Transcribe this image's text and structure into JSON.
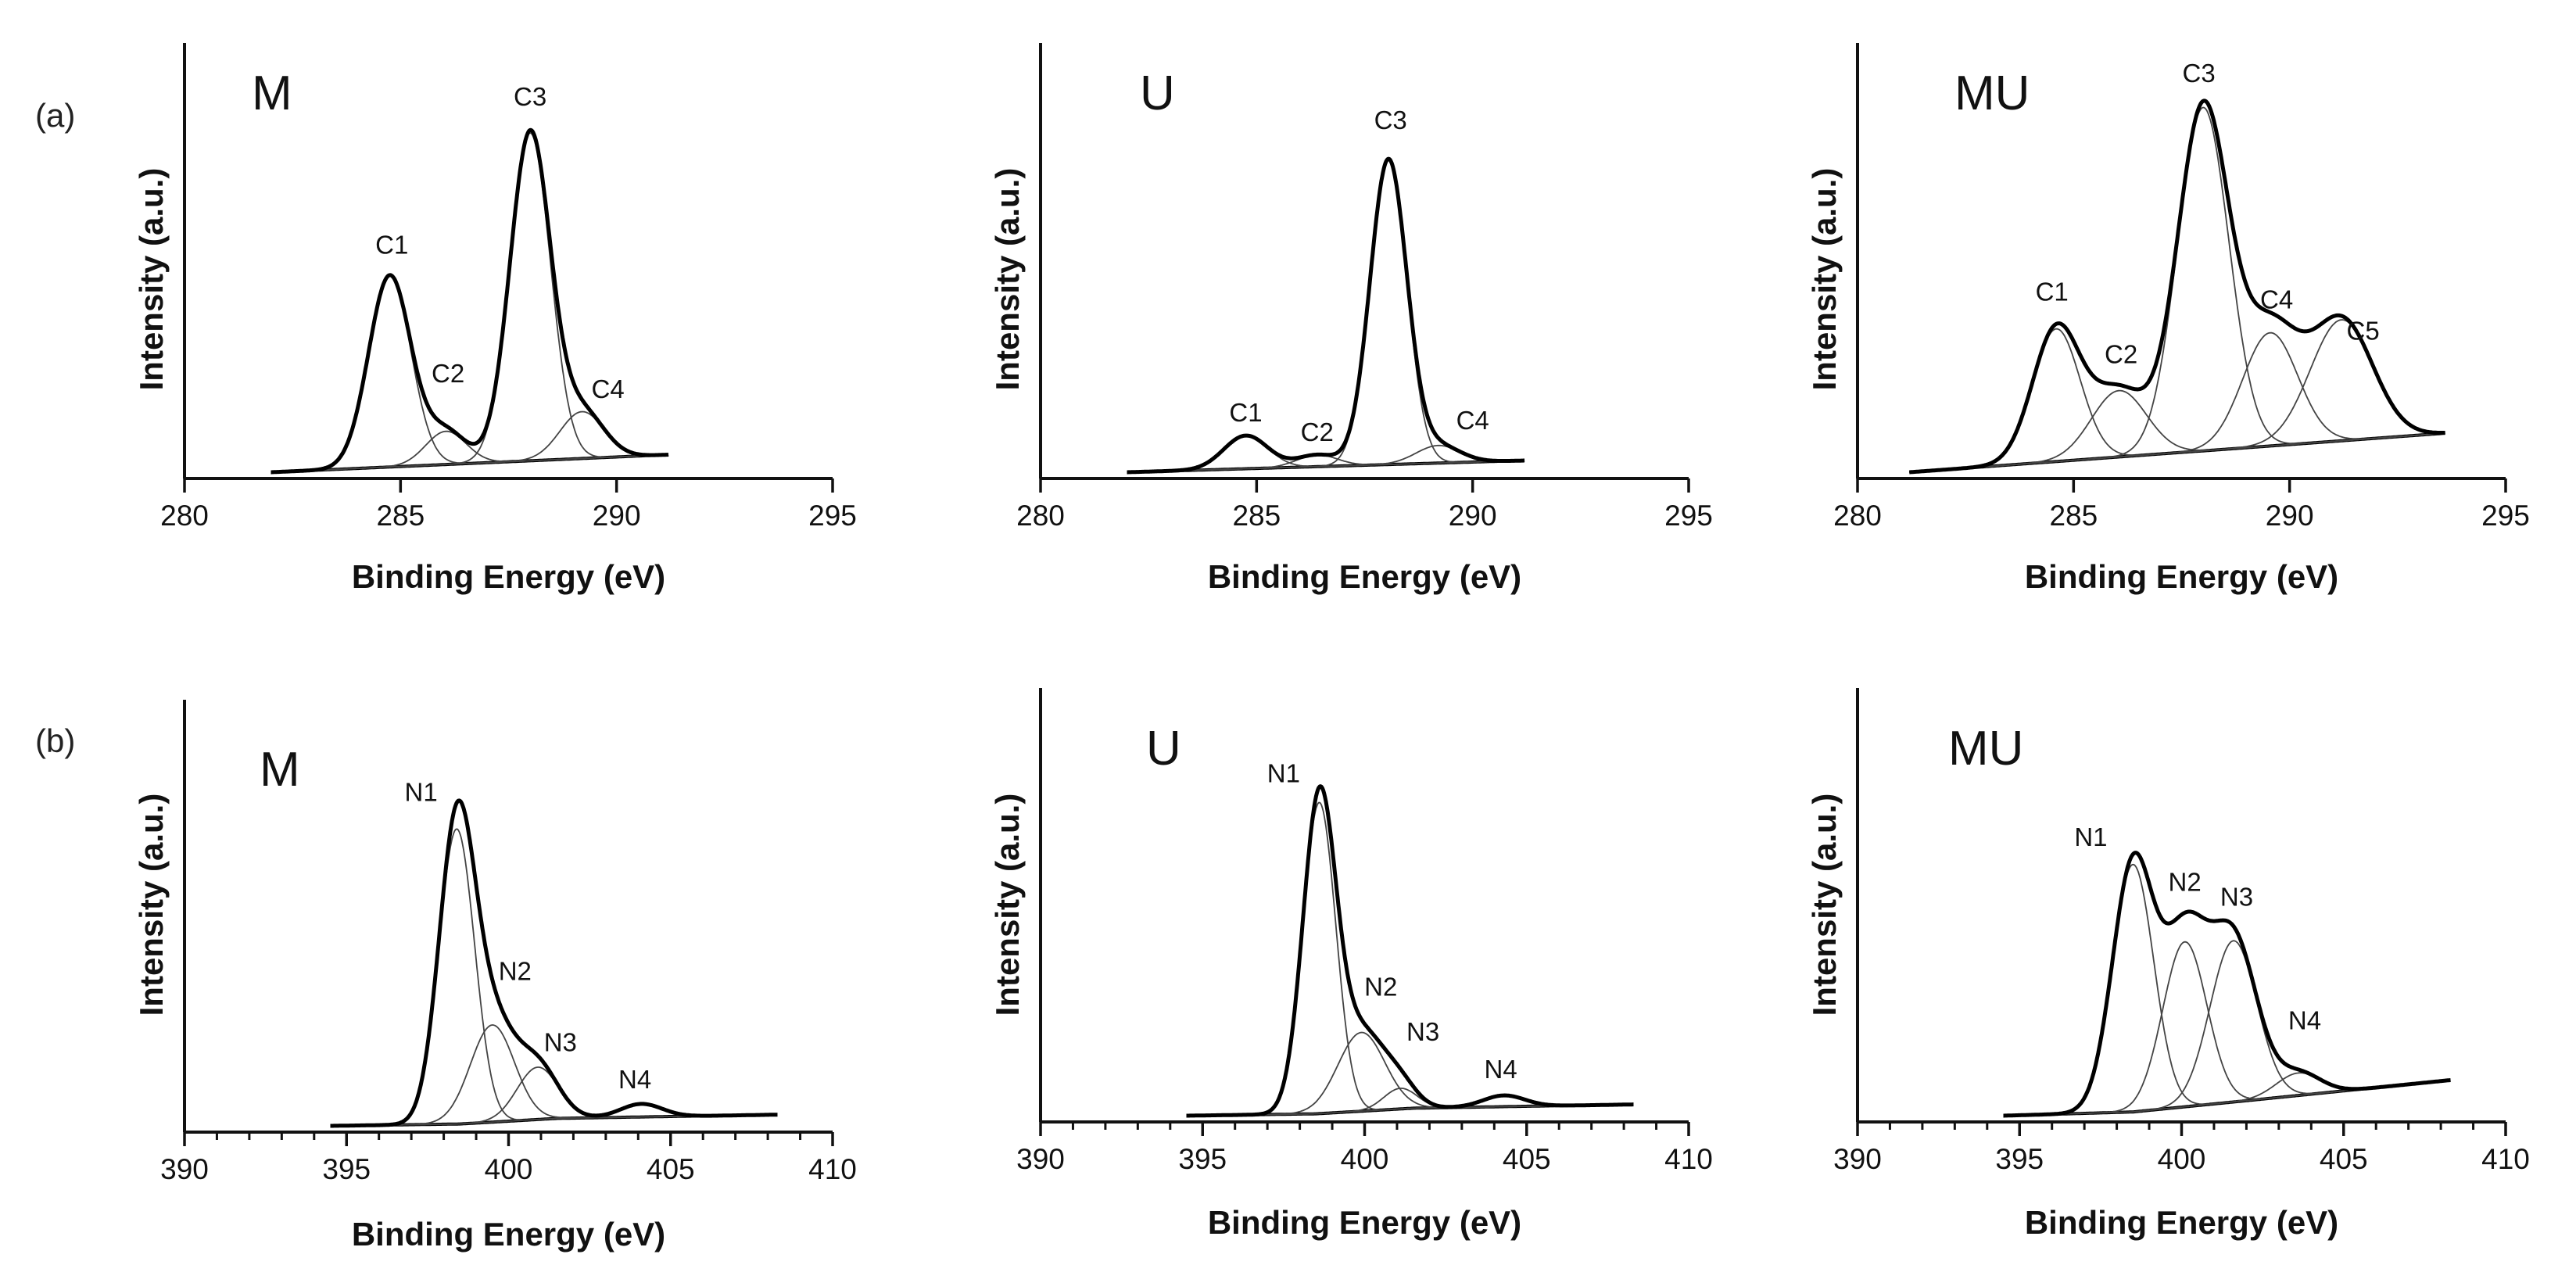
{
  "figure": {
    "row_labels": [
      "(a)",
      "(b)"
    ]
  },
  "chart_data": [
    {
      "id": "a-M",
      "type": "line",
      "title": "M",
      "xlabel": "Binding Energy (eV)",
      "ylabel": "Intensity (a.u.)",
      "xlim": [
        280,
        295
      ],
      "xticks": [
        280,
        285,
        290,
        295
      ],
      "x_minor_step": 0,
      "xrange": [
        282.0,
        291.2
      ],
      "ylim": [
        0,
        1.08
      ],
      "background": {
        "points": [
          [
            282.0,
            0.0
          ],
          [
            291.2,
            0.045
          ]
        ]
      },
      "components": [
        {
          "name": "C1",
          "center": 284.75,
          "height": 0.49,
          "fwhm": 1.15
        },
        {
          "name": "C2",
          "center": 286.05,
          "height": 0.085,
          "fwhm": 1.1
        },
        {
          "name": "C3",
          "center": 288.0,
          "height": 0.84,
          "fwhm": 1.1
        },
        {
          "name": "C4",
          "center": 289.2,
          "height": 0.12,
          "fwhm": 1.2
        }
      ],
      "labels": [
        {
          "text": "C1",
          "x": 284.8,
          "y": 0.56
        },
        {
          "text": "C2",
          "x": 286.1,
          "y": 0.23
        },
        {
          "text": "C3",
          "x": 288.0,
          "y": 0.94
        },
        {
          "text": "C4",
          "x": 289.8,
          "y": 0.19
        }
      ]
    },
    {
      "id": "a-U",
      "type": "line",
      "title": "U",
      "xlabel": "Binding Energy (eV)",
      "ylabel": "Intensity (a.u.)",
      "xlim": [
        280,
        295
      ],
      "xticks": [
        280,
        285,
        290,
        295
      ],
      "x_minor_step": 0,
      "xrange": [
        282.0,
        291.2
      ],
      "ylim": [
        0,
        1.08
      ],
      "background": {
        "points": [
          [
            282.0,
            0.0
          ],
          [
            291.2,
            0.03
          ]
        ]
      },
      "components": [
        {
          "name": "C1",
          "center": 284.75,
          "height": 0.085,
          "fwhm": 1.2
        },
        {
          "name": "C2",
          "center": 286.4,
          "height": 0.03,
          "fwhm": 1.1
        },
        {
          "name": "C3",
          "center": 288.05,
          "height": 0.78,
          "fwhm": 1.0
        },
        {
          "name": "C4",
          "center": 289.2,
          "height": 0.045,
          "fwhm": 1.2
        }
      ],
      "labels": [
        {
          "text": "C1",
          "x": 284.75,
          "y": 0.13
        },
        {
          "text": "C2",
          "x": 286.4,
          "y": 0.08
        },
        {
          "text": "C3",
          "x": 288.1,
          "y": 0.88
        },
        {
          "text": "C4",
          "x": 290.0,
          "y": 0.11
        }
      ]
    },
    {
      "id": "a-MU",
      "type": "line",
      "title": "MU",
      "xlabel": "Binding Energy (eV)",
      "ylabel": "Intensity (a.u.)",
      "xlim": [
        280,
        295
      ],
      "xticks": [
        280,
        285,
        290,
        295
      ],
      "x_minor_step": 0,
      "xrange": [
        281.2,
        293.6
      ],
      "ylim": [
        0,
        1.08
      ],
      "background": {
        "points": [
          [
            281.2,
            0.0
          ],
          [
            293.6,
            0.1
          ]
        ]
      },
      "components": [
        {
          "name": "C1",
          "center": 284.6,
          "height": 0.34,
          "fwhm": 1.3
        },
        {
          "name": "C2",
          "center": 286.05,
          "height": 0.17,
          "fwhm": 1.5
        },
        {
          "name": "C3",
          "center": 288.0,
          "height": 0.88,
          "fwhm": 1.4
        },
        {
          "name": "C4",
          "center": 289.55,
          "height": 0.29,
          "fwhm": 1.5
        },
        {
          "name": "C5",
          "center": 291.2,
          "height": 0.31,
          "fwhm": 1.7
        }
      ],
      "labels": [
        {
          "text": "C1",
          "x": 284.5,
          "y": 0.44
        },
        {
          "text": "C2",
          "x": 286.1,
          "y": 0.28
        },
        {
          "text": "C3",
          "x": 287.9,
          "y": 1.0
        },
        {
          "text": "C4",
          "x": 289.7,
          "y": 0.42
        },
        {
          "text": "C5",
          "x": 291.7,
          "y": 0.34
        }
      ]
    },
    {
      "id": "b-M",
      "type": "line",
      "title": "M",
      "xlabel": "Binding Energy (eV)",
      "ylabel": "Intensity (a.u.)",
      "xlim": [
        390,
        410
      ],
      "xticks": [
        390,
        395,
        400,
        405,
        410
      ],
      "x_minor_step": 1,
      "xrange": [
        394.5,
        408.3
      ],
      "ylim": [
        0,
        1.12
      ],
      "background": {
        "points": [
          [
            394.5,
            0.0
          ],
          [
            398.5,
            0.005
          ],
          [
            401.5,
            0.02
          ],
          [
            408.3,
            0.03
          ]
        ]
      },
      "components": [
        {
          "name": "N1",
          "center": 398.4,
          "height": 0.79,
          "fwhm": 1.3
        },
        {
          "name": "N2",
          "center": 399.5,
          "height": 0.26,
          "fwhm": 1.6
        },
        {
          "name": "N3",
          "center": 400.9,
          "height": 0.14,
          "fwhm": 1.5
        },
        {
          "name": "N4",
          "center": 404.1,
          "height": 0.035,
          "fwhm": 1.5
        }
      ],
      "labels": [
        {
          "text": "N1",
          "x": 397.3,
          "y": 0.87
        },
        {
          "text": "N2",
          "x": 400.2,
          "y": 0.39
        },
        {
          "text": "N3",
          "x": 401.6,
          "y": 0.2
        },
        {
          "text": "N4",
          "x": 403.9,
          "y": 0.1
        }
      ]
    },
    {
      "id": "b-U",
      "type": "line",
      "title": "U",
      "xlabel": "Binding Energy (eV)",
      "ylabel": "Intensity (a.u.)",
      "xlim": [
        390,
        410
      ],
      "xticks": [
        390,
        395,
        400,
        405,
        410
      ],
      "x_minor_step": 1,
      "xrange": [
        394.5,
        408.3
      ],
      "ylim": [
        0,
        1.12
      ],
      "background": {
        "points": [
          [
            394.5,
            0.0
          ],
          [
            398.5,
            0.005
          ],
          [
            401.5,
            0.02
          ],
          [
            408.3,
            0.03
          ]
        ]
      },
      "components": [
        {
          "name": "N1",
          "center": 398.6,
          "height": 0.83,
          "fwhm": 1.2
        },
        {
          "name": "N2",
          "center": 399.9,
          "height": 0.21,
          "fwhm": 1.7
        },
        {
          "name": "N3",
          "center": 401.1,
          "height": 0.055,
          "fwhm": 1.2
        },
        {
          "name": "N4",
          "center": 404.3,
          "height": 0.03,
          "fwhm": 1.5
        }
      ],
      "labels": [
        {
          "text": "N1",
          "x": 397.5,
          "y": 0.89
        },
        {
          "text": "N2",
          "x": 400.5,
          "y": 0.32
        },
        {
          "text": "N3",
          "x": 401.8,
          "y": 0.2
        },
        {
          "text": "N4",
          "x": 404.2,
          "y": 0.1
        }
      ]
    },
    {
      "id": "b-MU",
      "type": "line",
      "title": "MU",
      "xlabel": "Binding Energy (eV)",
      "ylabel": "Intensity (a.u.)",
      "xlim": [
        390,
        410
      ],
      "xticks": [
        390,
        395,
        400,
        405,
        410
      ],
      "x_minor_step": 1,
      "xrange": [
        394.5,
        408.3
      ],
      "ylim": [
        0,
        1.12
      ],
      "background": {
        "points": [
          [
            394.5,
            0.0
          ],
          [
            398.5,
            0.01
          ],
          [
            402.0,
            0.04
          ],
          [
            408.3,
            0.095
          ]
        ]
      },
      "components": [
        {
          "name": "N1",
          "center": 398.5,
          "height": 0.66,
          "fwhm": 1.5
        },
        {
          "name": "N2",
          "center": 400.1,
          "height": 0.44,
          "fwhm": 1.6
        },
        {
          "name": "N3",
          "center": 401.6,
          "height": 0.43,
          "fwhm": 1.7
        },
        {
          "name": "N4",
          "center": 403.6,
          "height": 0.06,
          "fwhm": 1.6
        }
      ],
      "labels": [
        {
          "text": "N1",
          "x": 397.2,
          "y": 0.72
        },
        {
          "text": "N2",
          "x": 400.1,
          "y": 0.6
        },
        {
          "text": "N3",
          "x": 401.7,
          "y": 0.56
        },
        {
          "text": "N4",
          "x": 403.8,
          "y": 0.23
        }
      ]
    }
  ]
}
